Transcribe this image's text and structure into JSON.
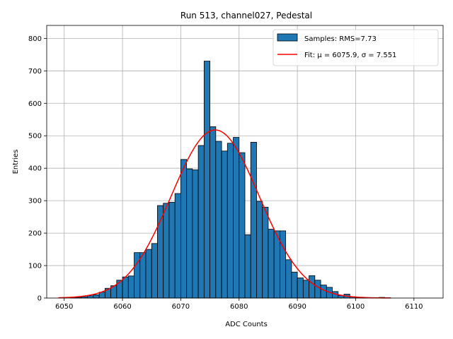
{
  "chart_data": {
    "type": "bar",
    "title": "Run 513, channel027, Pedestal",
    "xlabel": "ADC Counts",
    "ylabel": "Entries",
    "xlim": [
      6047,
      6115
    ],
    "ylim": [
      0,
      840
    ],
    "xticks": [
      6050,
      6060,
      6070,
      6080,
      6090,
      6100,
      6110
    ],
    "yticks": [
      0,
      100,
      200,
      300,
      400,
      500,
      600,
      700,
      800
    ],
    "grid": true,
    "legend_position": "top-right",
    "colors": {
      "bar_fill": "#1f77b4",
      "bar_edge": "#000000",
      "fit_line": "#ff0000"
    },
    "series": [
      {
        "name": "Samples: RMS=7.73",
        "kind": "histogram",
        "bin_width": 1,
        "bin_start": 6051,
        "values": [
          1,
          2,
          4,
          7,
          10,
          18,
          30,
          38,
          55,
          65,
          68,
          140,
          140,
          150,
          168,
          285,
          292,
          295,
          322,
          427,
          398,
          395,
          470,
          730,
          528,
          483,
          453,
          477,
          495,
          448,
          195,
          480,
          298,
          280,
          212,
          207,
          207,
          118,
          80,
          62,
          55,
          69,
          55,
          40,
          33,
          20,
          8,
          12,
          4,
          2,
          1,
          0,
          0,
          2,
          1
        ]
      },
      {
        "name": "Fit",
        "legend_label": "Fit: μ = 6075.9, σ = 7.551",
        "kind": "gaussian",
        "mu": 6075.9,
        "sigma": 7.551,
        "amplitude": 518,
        "x_range": [
          6049,
          6106
        ]
      }
    ]
  }
}
